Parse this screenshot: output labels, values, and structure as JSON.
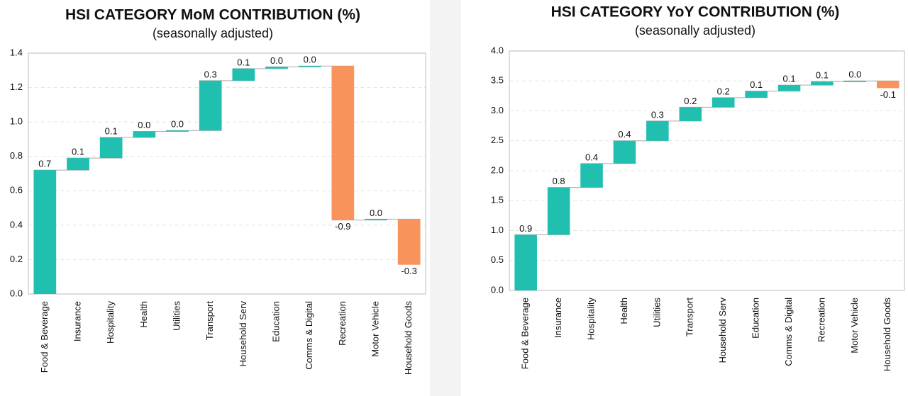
{
  "chart_data": [
    {
      "type": "waterfall",
      "title": "HSI CATEGORY MoM CONTRIBUTION (%)",
      "subtitle": "(seasonally adjusted)",
      "categories": [
        "Food & Beverage",
        "Insurance",
        "Hospitality",
        "Health",
        "Utilities",
        "Transport",
        "Household Serv",
        "Education",
        "Comms & Digital",
        "Recreation",
        "Motor Vehicle",
        "Household Goods"
      ],
      "values": [
        0.72,
        0.07,
        0.12,
        0.035,
        0.005,
        0.29,
        0.07,
        0.01,
        0.005,
        -0.895,
        0.005,
        -0.265
      ],
      "value_labels": [
        "0.7",
        "0.1",
        "0.1",
        "0.0",
        "0.0",
        "0.3",
        "0.1",
        "0.0",
        "0.0",
        "-0.9",
        "0.0",
        "-0.3"
      ],
      "color_up": "#20bfb0",
      "color_down": "#f9935c",
      "ylim": [
        0,
        1.4
      ],
      "yticks": [
        {
          "value": 0,
          "label": "0.0"
        },
        0.2,
        0.4,
        0.6,
        0.8,
        {
          "value": 1,
          "label": "1.0"
        },
        1.2,
        1.4
      ],
      "grid": true
    },
    {
      "type": "waterfall",
      "title": "HSI CATEGORY YoY CONTRIBUTION (%)",
      "subtitle": "(seasonally adjusted)",
      "categories": [
        "Food & Beverage",
        "Insurance",
        "Hospitality",
        "Health",
        "Utilities",
        "Transport",
        "Household Serv",
        "Education",
        "Comms & Digital",
        "Recreation",
        "Motor Vehicle",
        "Household Goods"
      ],
      "values": [
        0.93,
        0.79,
        0.4,
        0.38,
        0.33,
        0.23,
        0.16,
        0.11,
        0.1,
        0.06,
        0.01,
        -0.12
      ],
      "value_labels": [
        "0.9",
        "0.8",
        "0.4",
        "0.4",
        "0.3",
        "0.2",
        "0.2",
        "0.1",
        "0.1",
        "0.1",
        "0.0",
        "-0.1"
      ],
      "color_up": "#20bfb0",
      "color_down": "#f9935c",
      "ylim": [
        0,
        4.0
      ],
      "yticks": [
        {
          "value": 0,
          "label": "0.0"
        },
        0.5,
        {
          "value": 1,
          "label": "1.0"
        },
        1.5,
        {
          "value": 2,
          "label": "2.0"
        },
        2.5,
        {
          "value": 3,
          "label": "3.0"
        },
        3.5,
        {
          "value": 4,
          "label": "4.0"
        }
      ],
      "grid": true
    }
  ]
}
